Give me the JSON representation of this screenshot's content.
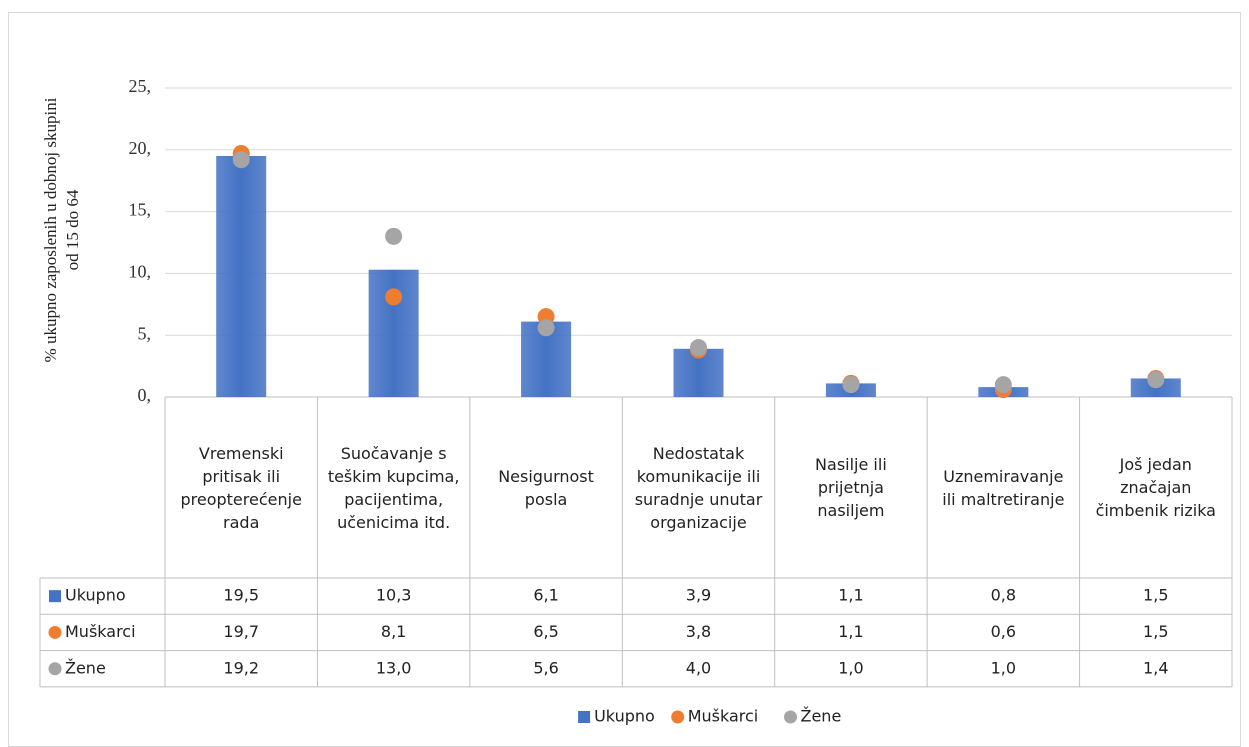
{
  "chart_data": {
    "type": "bar",
    "y_label": "% ukupno zaposlenih u dobnoj skupini od 15 do 64",
    "categories": [
      "Vremenski pritisak ili preopterećenje rada",
      "Suočavanje s teškim kupcima, pacijentima, učenicima itd.",
      "Nesigurnost posla",
      "Nedostatak komunikacije ili suradnje unutar organizacije",
      "Nasilje ili prijetnja nasiljem",
      "Uznemiravanje ili maltretiranje",
      "Još jedan značajan čimbenik rizika"
    ],
    "series": [
      {
        "name": "Ukupno",
        "type": "bar",
        "color": "#4472c4",
        "values": [
          19.5,
          10.3,
          6.1,
          3.9,
          1.1,
          0.8,
          1.5
        ],
        "value_labels": [
          "19,5",
          "10,3",
          "6,1",
          "3,9",
          "1,1",
          "0,8",
          "1,5"
        ]
      },
      {
        "name": "Muškarci",
        "type": "scatter",
        "color": "#ed7d31",
        "values": [
          19.7,
          8.1,
          6.5,
          3.8,
          1.1,
          0.6,
          1.5
        ],
        "value_labels": [
          "19,7",
          "8,1",
          "6,5",
          "3,8",
          "1,1",
          "0,6",
          "1,5"
        ]
      },
      {
        "name": "Žene",
        "type": "scatter",
        "color": "#a5a5a5",
        "values": [
          19.2,
          13.0,
          5.6,
          4.0,
          1.0,
          1.0,
          1.4
        ],
        "value_labels": [
          "19,2",
          "13,0",
          "5,6",
          "4,0",
          "1,0",
          "1,0",
          "1,4"
        ]
      }
    ],
    "ylim": [
      0,
      25
    ],
    "yticks": [
      {
        "value": 0,
        "label": "0,"
      },
      {
        "value": 5,
        "label": "5,"
      },
      {
        "value": 10,
        "label": "10,"
      },
      {
        "value": 15,
        "label": "15,"
      },
      {
        "value": 20,
        "label": "20,"
      },
      {
        "value": 25,
        "label": "25,"
      }
    ],
    "grid": true,
    "data_table": true,
    "legend": "bottom"
  }
}
